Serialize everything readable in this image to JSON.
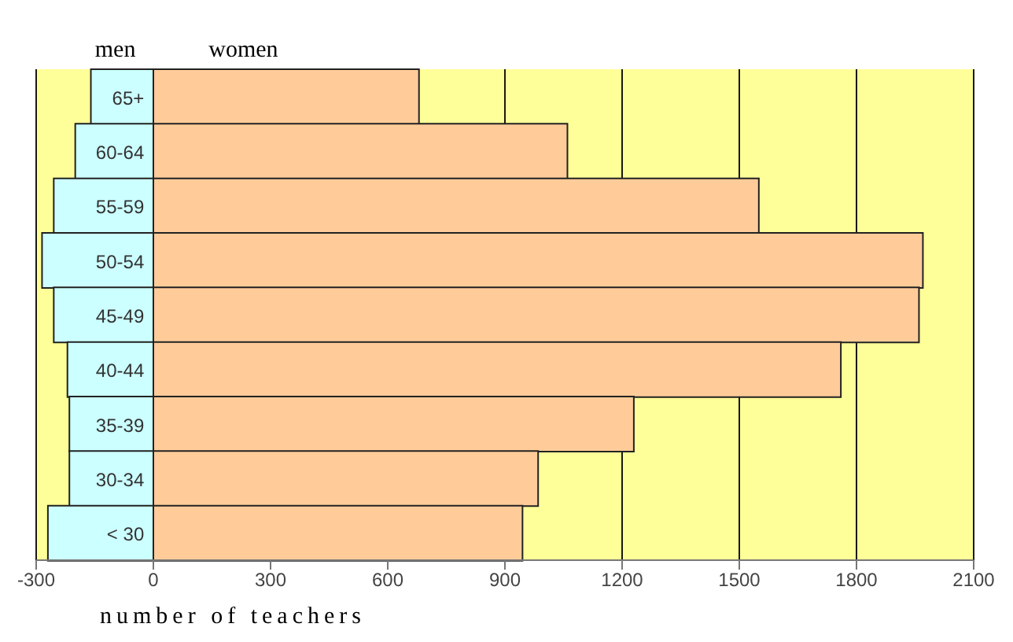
{
  "chart_data": {
    "type": "bar",
    "orientation": "horizontal",
    "stacked": true,
    "xlabel": "number of teachers",
    "categories": [
      "65+",
      "60-64",
      "55-59",
      "50-54",
      "45-49",
      "40-44",
      "35-39",
      "30-34",
      "< 30"
    ],
    "series": [
      {
        "name": "men",
        "color": "#ccffff",
        "values": [
          -160,
          -200,
          -255,
          -285,
          -255,
          -220,
          -215,
          -215,
          -270
        ]
      },
      {
        "name": "women",
        "color": "#ffcc99",
        "values": [
          680,
          1060,
          1550,
          1970,
          1960,
          1760,
          1230,
          985,
          945
        ]
      }
    ],
    "xlim": [
      -300,
      2100
    ],
    "xticks": [
      -300,
      0,
      300,
      600,
      900,
      1200,
      1500,
      1800,
      2100
    ],
    "grid": "x",
    "legend": "top left",
    "bands": [
      {
        "axis": "x",
        "from": -300,
        "to": 2100,
        "color": "#ffff99"
      }
    ]
  }
}
